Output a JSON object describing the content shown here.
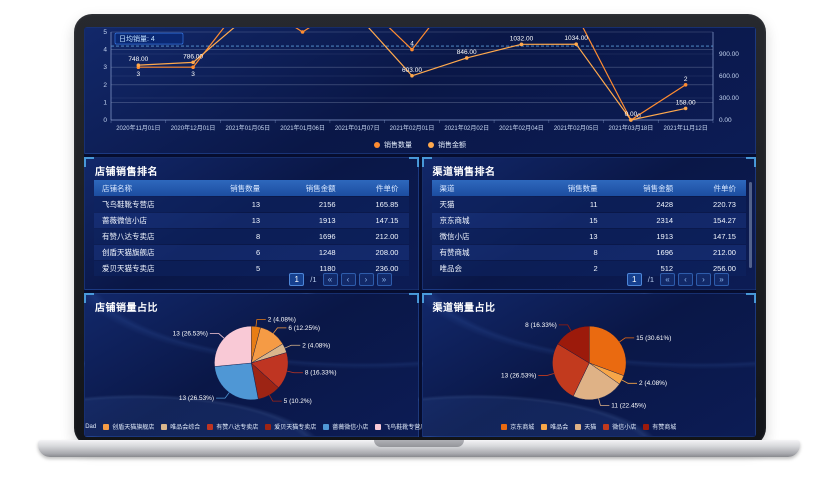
{
  "colors": {
    "accent_orange": "#ff8c30",
    "accent_orange2": "#ffa94d",
    "panel_border": "#2f5fae",
    "header_blue": "#2e68bd",
    "dash_blue": "#5b9bd5"
  },
  "chart_data": [
    {
      "id": "sales_trend",
      "type": "line",
      "categories": [
        "2020年11月01日",
        "2020年12月01日",
        "2021年01月05日",
        "2021年01月06日",
        "2021年01月07日",
        "2021年02月01日",
        "2021年02月02日",
        "2021年02月04日",
        "2021年02月05日",
        "2021年03月18日",
        "2021年11月12日"
      ],
      "left_axis": {
        "min": 0,
        "max": 5,
        "ticks": [
          0,
          1,
          2,
          3,
          4,
          5
        ]
      },
      "right_axis": {
        "min": 0,
        "max": 1200,
        "ticks": [
          0,
          300,
          600,
          900
        ],
        "tick_labels": [
          "0.00",
          "300.00",
          "600.00",
          "900.00"
        ]
      },
      "avg_line": {
        "label": "日均销量: 4",
        "value": 4.2
      },
      "legend_position": "bottom",
      "grid": true,
      "series": [
        {
          "name": "销售数量",
          "axis": "left",
          "color": "#ff8c30",
          "values": [
            3,
            3,
            7,
            5,
            7,
            4,
            8,
            7,
            6,
            0,
            2
          ],
          "point_labels": [
            "3",
            "3",
            "",
            "",
            "",
            "4",
            "",
            "",
            "",
            "0",
            "2"
          ]
        },
        {
          "name": "销售金额",
          "axis": "right",
          "color": "#ffa94d",
          "values": [
            748,
            786,
            1420,
            1360,
            1430,
            603,
            846,
            1032,
            1034,
            0,
            158
          ],
          "point_labels": [
            "748.00",
            "786.00",
            "",
            "",
            "",
            "603.00",
            "846.00",
            "1032.00",
            "1034.00",
            "0.00",
            "158.00"
          ]
        }
      ]
    },
    {
      "id": "store_share",
      "type": "pie",
      "title": "店铺销量占比",
      "slices": [
        {
          "name": "Dad",
          "value": 2,
          "label": "2 (4.08%)",
          "color": "#e87d15"
        },
        {
          "name": "创盾天猫旗舰店",
          "value": 6,
          "label": "6 (12.25%)",
          "color": "#f59b45"
        },
        {
          "name": "唯品会综合",
          "value": 2,
          "label": "2 (4.08%)",
          "color": "#d9b68c"
        },
        {
          "name": "有赞八达专卖店",
          "value": 8,
          "label": "8 (16.33%)",
          "color": "#bf3522"
        },
        {
          "name": "爱贝天猫专卖店",
          "value": 5,
          "label": "5 (10.2%)",
          "color": "#9d2414"
        },
        {
          "name": "蔷薇微信小店",
          "value": 13,
          "label": "13 (26.53%)",
          "color": "#4f97d5"
        },
        {
          "name": "飞鸟鞋靴专营店",
          "value": 13,
          "label": "13 (26.53%)",
          "color": "#f9c9d6"
        }
      ]
    },
    {
      "id": "channel_share",
      "type": "pie",
      "title": "渠道销量占比",
      "slices": [
        {
          "name": "京东商城",
          "value": 15,
          "label": "15 (30.61%)",
          "color": "#ea6a10"
        },
        {
          "name": "唯品会",
          "value": 2,
          "label": "2 (4.08%)",
          "color": "#f7a648"
        },
        {
          "name": "天猫",
          "value": 11,
          "label": "11 (22.45%)",
          "color": "#dfb286"
        },
        {
          "name": "微信小店",
          "value": 13,
          "label": "13 (26.53%)",
          "color": "#c23a1e"
        },
        {
          "name": "有赞商城",
          "value": 8,
          "label": "8 (16.33%)",
          "color": "#9c1a0b"
        }
      ]
    }
  ],
  "tables": [
    {
      "title": "店铺销售排名",
      "headers": [
        "店铺名称",
        "销售数量",
        "销售金额",
        "件单价"
      ],
      "rows": [
        [
          "飞鸟鞋靴专营店",
          "13",
          "2156",
          "165.85"
        ],
        [
          "蔷薇微信小店",
          "13",
          "1913",
          "147.15"
        ],
        [
          "有赞八达专卖店",
          "8",
          "1696",
          "212.00"
        ],
        [
          "创盾天猫旗舰店",
          "6",
          "1248",
          "208.00"
        ],
        [
          "爱贝天猫专卖店",
          "5",
          "1180",
          "236.00"
        ]
      ],
      "pagination": {
        "page": "1",
        "of": "/1",
        "first": "«",
        "prev": "‹",
        "next": "›",
        "last": "»"
      }
    },
    {
      "title": "渠道销售排名",
      "headers": [
        "渠道",
        "销售数量",
        "销售金额",
        "件单价"
      ],
      "rows": [
        [
          "天猫",
          "11",
          "2428",
          "220.73"
        ],
        [
          "京东商城",
          "15",
          "2314",
          "154.27"
        ],
        [
          "微信小店",
          "13",
          "1913",
          "147.15"
        ],
        [
          "有赞商城",
          "8",
          "1696",
          "212.00"
        ],
        [
          "唯品会",
          "2",
          "512",
          "256.00"
        ]
      ],
      "pagination": {
        "page": "1",
        "of": "/1",
        "first": "«",
        "prev": "‹",
        "next": "›",
        "last": "»"
      }
    }
  ]
}
